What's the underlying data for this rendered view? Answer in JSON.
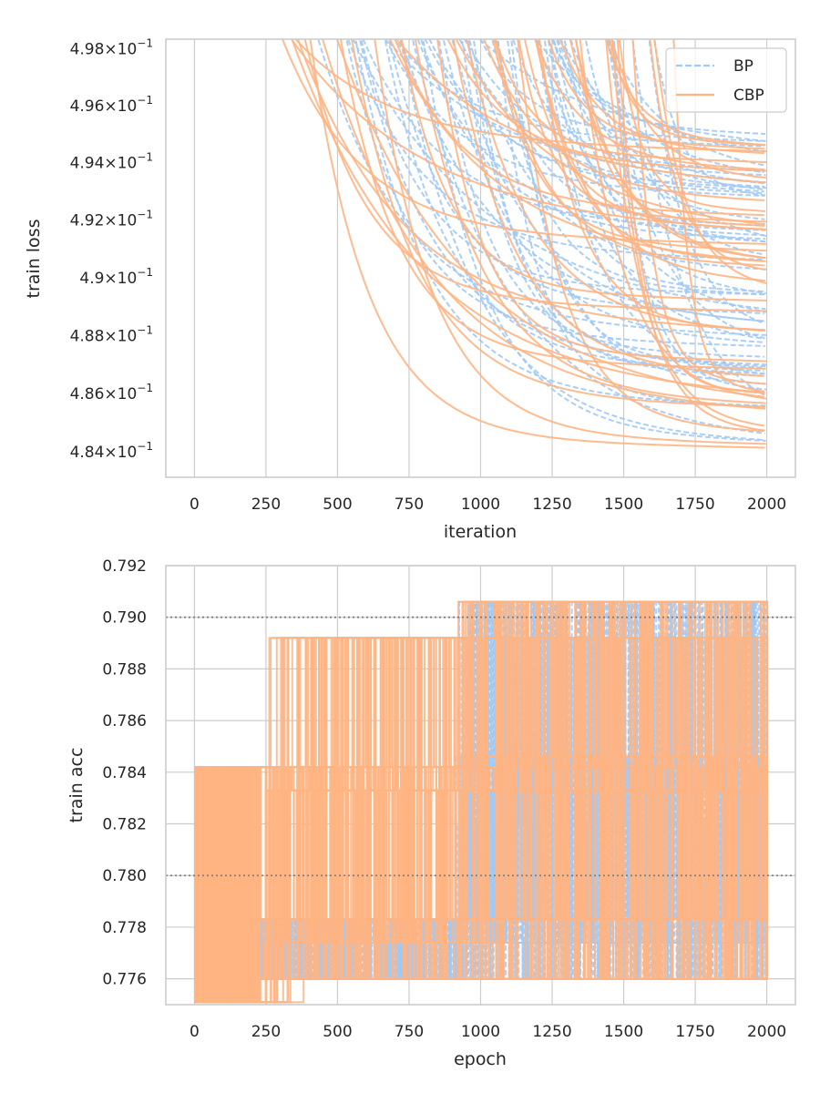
{
  "colors": {
    "BP": "#a1c9f4",
    "CBP": "#ffb482",
    "hline": "#808080"
  },
  "chart_data": [
    {
      "type": "line",
      "xlabel": "iteration",
      "ylabel": "train loss",
      "yscale": "log",
      "xlim": [
        -100,
        2100
      ],
      "ylim": [
        0.4831,
        0.4983
      ],
      "xticks": [
        0,
        250,
        500,
        750,
        1000,
        1250,
        1500,
        1750,
        2000
      ],
      "xtick_labels": [
        "0",
        "250",
        "500",
        "750",
        "1000",
        "1250",
        "1500",
        "1750",
        "2000"
      ],
      "yticks": [
        0.484,
        0.486,
        0.488,
        0.49,
        0.492,
        0.494,
        0.496,
        0.498
      ],
      "ytick_labels": [
        {
          "mant": "4.84",
          "exp": "−1"
        },
        {
          "mant": "4.86",
          "exp": "−1"
        },
        {
          "mant": "4.88",
          "exp": "−1"
        },
        {
          "mant": "4.9",
          "exp": "−1"
        },
        {
          "mant": "4.92",
          "exp": "−1"
        },
        {
          "mant": "4.94",
          "exp": "−1"
        },
        {
          "mant": "4.96",
          "exp": "−1"
        },
        {
          "mant": "4.98",
          "exp": "−1"
        }
      ],
      "grid": "vertical",
      "legend": {
        "position": "top-right",
        "entries": [
          {
            "label": "BP",
            "style": "dashed"
          },
          {
            "label": "CBP",
            "style": "solid"
          }
        ]
      },
      "series": [
        {
          "name": "BP",
          "style": "dashed",
          "runs": 60,
          "final_range": [
            0.4842,
            0.495
          ]
        },
        {
          "name": "CBP",
          "style": "solid",
          "runs": 50,
          "final_range": [
            0.4841,
            0.4947
          ]
        }
      ]
    },
    {
      "type": "line",
      "xlabel": "epoch",
      "ylabel": "train acc",
      "xlim": [
        -100,
        2100
      ],
      "ylim": [
        0.775,
        0.792
      ],
      "xticks": [
        0,
        250,
        500,
        750,
        1000,
        1250,
        1500,
        1750,
        2000
      ],
      "xtick_labels": [
        "0",
        "250",
        "500",
        "750",
        "1000",
        "1250",
        "1500",
        "1750",
        "2000"
      ],
      "yticks": [
        0.776,
        0.778,
        0.78,
        0.782,
        0.784,
        0.786,
        0.788,
        0.79,
        0.792
      ],
      "ytick_labels": [
        "0.776",
        "0.778",
        "0.780",
        "0.782",
        "0.784",
        "0.786",
        "0.788",
        "0.790",
        "0.792"
      ],
      "grid": "both",
      "hlines": [
        0.78,
        0.79
      ],
      "accuracy_levels": [
        0.7751,
        0.776,
        0.7774,
        0.7783,
        0.782,
        0.7833,
        0.7842,
        0.7846,
        0.7892,
        0.7906
      ],
      "series": [
        {
          "name": "BP",
          "style": "dashed",
          "runs": 60
        },
        {
          "name": "CBP",
          "style": "solid",
          "runs": 50
        }
      ]
    }
  ]
}
